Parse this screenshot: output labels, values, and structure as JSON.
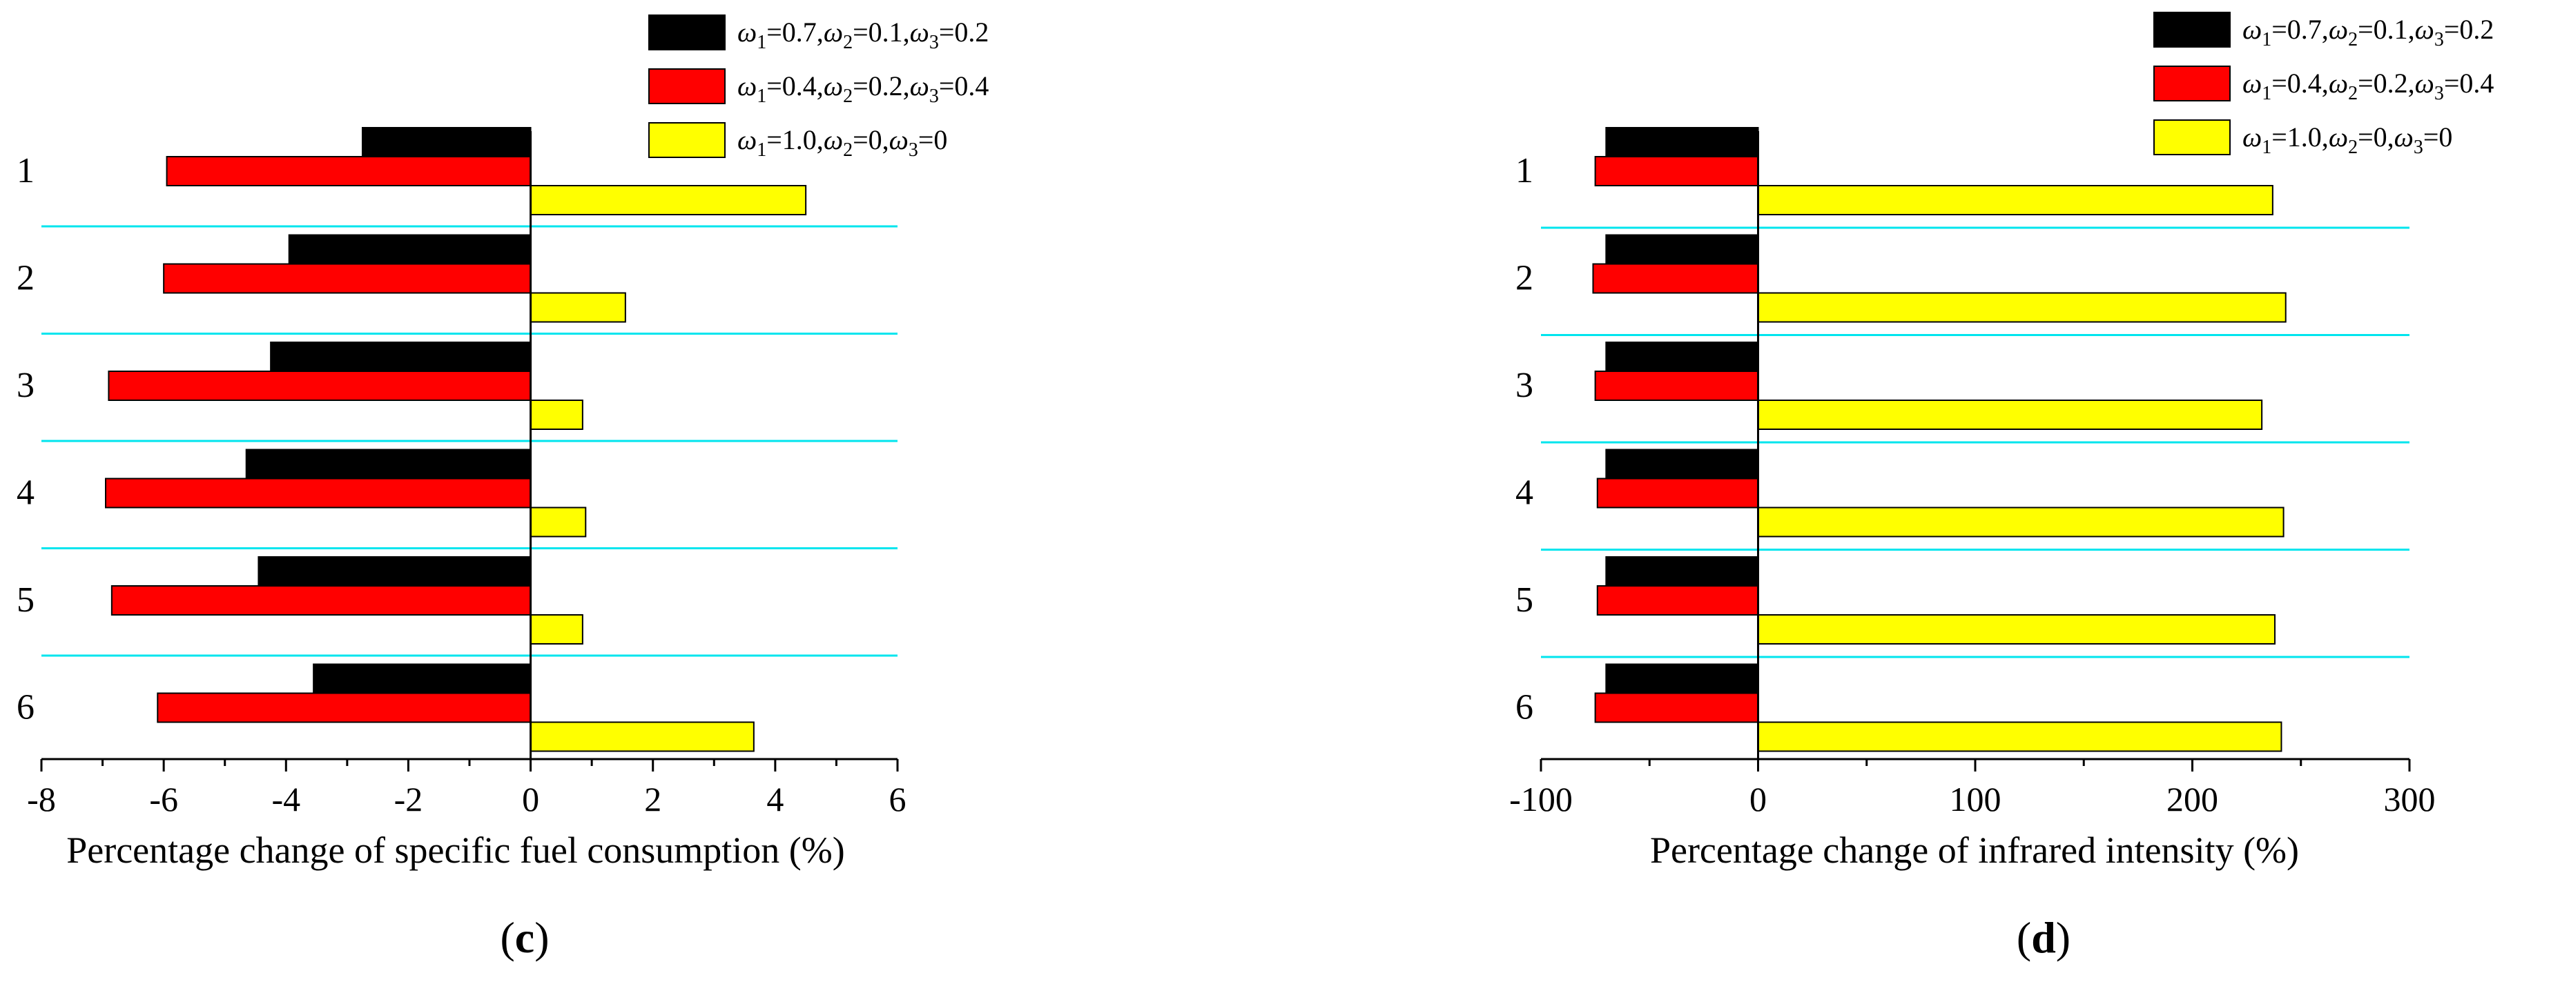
{
  "chart_data": [
    {
      "type": "bar",
      "orientation": "horizontal",
      "panel_label": "c",
      "title": "",
      "xlabel": "Percentage change of specific fuel consumption (%)",
      "ylabel": "",
      "xlim": [
        -8,
        6
      ],
      "x_ticks": [
        "-8",
        "-6",
        "-4",
        "-2",
        "0",
        "2",
        "4",
        "6"
      ],
      "x_tick_values": [
        -8,
        -6,
        -4,
        -2,
        0,
        2,
        4,
        6
      ],
      "categories": [
        "1",
        "2",
        "3",
        "4",
        "5",
        "6"
      ],
      "series": [
        {
          "name_parts": [
            "ω",
            "1",
            "=0.7,",
            "ω",
            "2",
            "=0.1,",
            "ω",
            "3",
            "=0.2"
          ],
          "color": "#000000",
          "values": [
            -2.75,
            -3.95,
            -4.25,
            -4.65,
            -4.45,
            -3.55
          ]
        },
        {
          "name_parts": [
            "ω",
            "1",
            "=0.4,",
            "ω",
            "2",
            "=0.2,",
            "ω",
            "3",
            "=0.4"
          ],
          "color": "#ff0000",
          "values": [
            -5.95,
            -6.0,
            -6.9,
            -6.95,
            -6.85,
            -6.1
          ]
        },
        {
          "name_parts": [
            "ω",
            "1",
            "=1.0,",
            "ω",
            "2",
            "=0,",
            "ω",
            "3",
            "=0"
          ],
          "color": "#ffff00",
          "values": [
            4.5,
            1.55,
            0.85,
            0.9,
            0.85,
            3.65
          ]
        }
      ],
      "legend_position": "top-right",
      "separator_color": "#00e5ee"
    },
    {
      "type": "bar",
      "orientation": "horizontal",
      "panel_label": "d",
      "title": "",
      "xlabel": "Percentage change of infrared intensity (%)",
      "ylabel": "",
      "xlim": [
        -100,
        300
      ],
      "x_ticks": [
        "-100",
        "0",
        "100",
        "200",
        "300"
      ],
      "x_tick_values": [
        -100,
        0,
        100,
        200,
        300
      ],
      "categories": [
        "1",
        "2",
        "3",
        "4",
        "5",
        "6"
      ],
      "series": [
        {
          "name_parts": [
            "ω",
            "1",
            "=0.7,",
            "ω",
            "2",
            "=0.1,",
            "ω",
            "3",
            "=0.2"
          ],
          "color": "#000000",
          "values": [
            -70,
            -70,
            -70,
            -70,
            -70,
            -70
          ]
        },
        {
          "name_parts": [
            "ω",
            "1",
            "=0.4,",
            "ω",
            "2",
            "=0.2,",
            "ω",
            "3",
            "=0.4"
          ],
          "color": "#ff0000",
          "values": [
            -75,
            -76,
            -75,
            -74,
            -74,
            -75
          ]
        },
        {
          "name_parts": [
            "ω",
            "1",
            "=1.0,",
            "ω",
            "2",
            "=0,",
            "ω",
            "3",
            "=0"
          ],
          "color": "#ffff00",
          "values": [
            237,
            243,
            232,
            242,
            238,
            241
          ]
        }
      ],
      "legend_position": "top-right",
      "separator_color": "#00e5ee"
    }
  ]
}
